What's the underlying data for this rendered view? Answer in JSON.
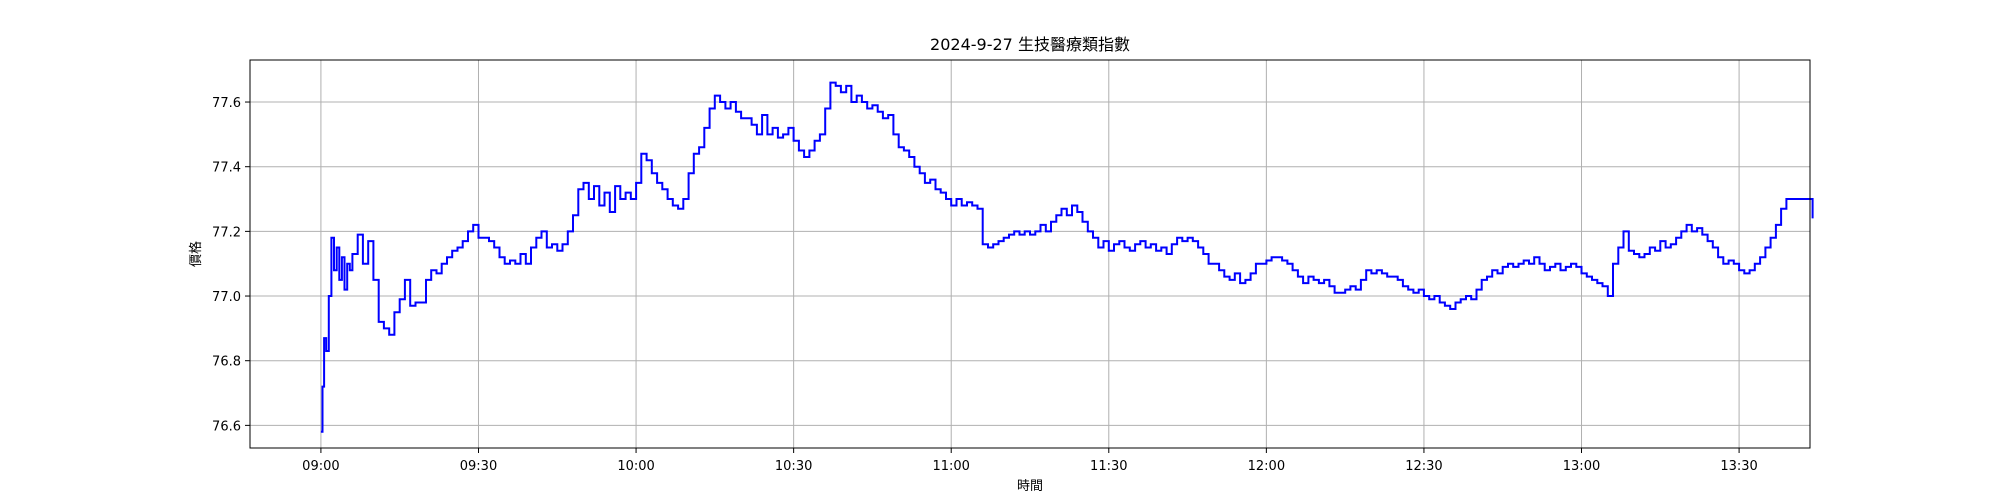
{
  "chart_data": {
    "type": "line",
    "title": "2024-9-27 生技醫療類指數",
    "xlabel": "時間",
    "ylabel": "價格",
    "x_ticks": [
      "09:00",
      "09:30",
      "10:00",
      "10:30",
      "11:00",
      "11:30",
      "12:00",
      "12:30",
      "13:00",
      "13:30"
    ],
    "y_ticks": [
      "76.6",
      "76.8",
      "77.0",
      "77.2",
      "77.4",
      "77.6"
    ],
    "xlim_minutes": [
      -13.5,
      283.5
    ],
    "ylim": [
      76.53,
      77.73
    ],
    "grid": true,
    "series": [
      {
        "color": "#0000ff",
        "points": [
          [
            0,
            76.58
          ],
          [
            0.3,
            76.72
          ],
          [
            0.6,
            76.87
          ],
          [
            1,
            76.83
          ],
          [
            1.5,
            77.0
          ],
          [
            2,
            77.18
          ],
          [
            2.5,
            77.08
          ],
          [
            3,
            77.15
          ],
          [
            3.5,
            77.05
          ],
          [
            4,
            77.12
          ],
          [
            4.5,
            77.02
          ],
          [
            5,
            77.1
          ],
          [
            5.5,
            77.08
          ],
          [
            6,
            77.13
          ],
          [
            7,
            77.19
          ],
          [
            8,
            77.1
          ],
          [
            9,
            77.17
          ],
          [
            10,
            77.05
          ],
          [
            11,
            76.92
          ],
          [
            12,
            76.9
          ],
          [
            13,
            76.88
          ],
          [
            14,
            76.95
          ],
          [
            15,
            76.99
          ],
          [
            16,
            77.05
          ],
          [
            17,
            76.97
          ],
          [
            18,
            76.98
          ],
          [
            19,
            76.98
          ],
          [
            20,
            77.05
          ],
          [
            21,
            77.08
          ],
          [
            22,
            77.07
          ],
          [
            23,
            77.1
          ],
          [
            24,
            77.12
          ],
          [
            25,
            77.14
          ],
          [
            26,
            77.15
          ],
          [
            27,
            77.17
          ],
          [
            28,
            77.2
          ],
          [
            29,
            77.22
          ],
          [
            30,
            77.18
          ],
          [
            31,
            77.18
          ],
          [
            32,
            77.17
          ],
          [
            33,
            77.15
          ],
          [
            34,
            77.12
          ],
          [
            35,
            77.1
          ],
          [
            36,
            77.11
          ],
          [
            37,
            77.1
          ],
          [
            38,
            77.13
          ],
          [
            39,
            77.1
          ],
          [
            40,
            77.15
          ],
          [
            41,
            77.18
          ],
          [
            42,
            77.2
          ],
          [
            43,
            77.15
          ],
          [
            44,
            77.16
          ],
          [
            45,
            77.14
          ],
          [
            46,
            77.16
          ],
          [
            47,
            77.2
          ],
          [
            48,
            77.25
          ],
          [
            49,
            77.33
          ],
          [
            50,
            77.35
          ],
          [
            51,
            77.3
          ],
          [
            52,
            77.34
          ],
          [
            53,
            77.28
          ],
          [
            54,
            77.32
          ],
          [
            55,
            77.26
          ],
          [
            56,
            77.34
          ],
          [
            57,
            77.3
          ],
          [
            58,
            77.32
          ],
          [
            59,
            77.3
          ],
          [
            60,
            77.35
          ],
          [
            61,
            77.44
          ],
          [
            62,
            77.42
          ],
          [
            63,
            77.38
          ],
          [
            64,
            77.35
          ],
          [
            65,
            77.33
          ],
          [
            66,
            77.3
          ],
          [
            67,
            77.28
          ],
          [
            68,
            77.27
          ],
          [
            69,
            77.3
          ],
          [
            70,
            77.38
          ],
          [
            71,
            77.44
          ],
          [
            72,
            77.46
          ],
          [
            73,
            77.52
          ],
          [
            74,
            77.58
          ],
          [
            75,
            77.62
          ],
          [
            76,
            77.6
          ],
          [
            77,
            77.58
          ],
          [
            78,
            77.6
          ],
          [
            79,
            77.57
          ],
          [
            80,
            77.55
          ],
          [
            81,
            77.55
          ],
          [
            82,
            77.53
          ],
          [
            83,
            77.5
          ],
          [
            84,
            77.56
          ],
          [
            85,
            77.5
          ],
          [
            86,
            77.52
          ],
          [
            87,
            77.49
          ],
          [
            88,
            77.5
          ],
          [
            89,
            77.52
          ],
          [
            90,
            77.48
          ],
          [
            91,
            77.45
          ],
          [
            92,
            77.43
          ],
          [
            93,
            77.45
          ],
          [
            94,
            77.48
          ],
          [
            95,
            77.5
          ],
          [
            96,
            77.58
          ],
          [
            97,
            77.66
          ],
          [
            98,
            77.65
          ],
          [
            99,
            77.63
          ],
          [
            100,
            77.65
          ],
          [
            101,
            77.6
          ],
          [
            102,
            77.62
          ],
          [
            103,
            77.6
          ],
          [
            104,
            77.58
          ],
          [
            105,
            77.59
          ],
          [
            106,
            77.57
          ],
          [
            107,
            77.55
          ],
          [
            108,
            77.56
          ],
          [
            109,
            77.5
          ],
          [
            110,
            77.46
          ],
          [
            111,
            77.45
          ],
          [
            112,
            77.43
          ],
          [
            113,
            77.4
          ],
          [
            114,
            77.38
          ],
          [
            115,
            77.35
          ],
          [
            116,
            77.36
          ],
          [
            117,
            77.33
          ],
          [
            118,
            77.32
          ],
          [
            119,
            77.3
          ],
          [
            120,
            77.28
          ],
          [
            121,
            77.3
          ],
          [
            122,
            77.28
          ],
          [
            123,
            77.29
          ],
          [
            124,
            77.28
          ],
          [
            125,
            77.27
          ],
          [
            126,
            77.16
          ],
          [
            127,
            77.15
          ],
          [
            128,
            77.16
          ],
          [
            129,
            77.17
          ],
          [
            130,
            77.18
          ],
          [
            131,
            77.19
          ],
          [
            132,
            77.2
          ],
          [
            133,
            77.19
          ],
          [
            134,
            77.2
          ],
          [
            135,
            77.19
          ],
          [
            136,
            77.2
          ],
          [
            137,
            77.22
          ],
          [
            138,
            77.2
          ],
          [
            139,
            77.23
          ],
          [
            140,
            77.25
          ],
          [
            141,
            77.27
          ],
          [
            142,
            77.25
          ],
          [
            143,
            77.28
          ],
          [
            144,
            77.26
          ],
          [
            145,
            77.23
          ],
          [
            146,
            77.2
          ],
          [
            147,
            77.18
          ],
          [
            148,
            77.15
          ],
          [
            149,
            77.17
          ],
          [
            150,
            77.14
          ],
          [
            151,
            77.16
          ],
          [
            152,
            77.17
          ],
          [
            153,
            77.15
          ],
          [
            154,
            77.14
          ],
          [
            155,
            77.16
          ],
          [
            156,
            77.17
          ],
          [
            157,
            77.15
          ],
          [
            158,
            77.16
          ],
          [
            159,
            77.14
          ],
          [
            160,
            77.15
          ],
          [
            161,
            77.13
          ],
          [
            162,
            77.16
          ],
          [
            163,
            77.18
          ],
          [
            164,
            77.17
          ],
          [
            165,
            77.18
          ],
          [
            166,
            77.17
          ],
          [
            167,
            77.15
          ],
          [
            168,
            77.13
          ],
          [
            169,
            77.1
          ],
          [
            170,
            77.1
          ],
          [
            171,
            77.08
          ],
          [
            172,
            77.06
          ],
          [
            173,
            77.05
          ],
          [
            174,
            77.07
          ],
          [
            175,
            77.04
          ],
          [
            176,
            77.05
          ],
          [
            177,
            77.07
          ],
          [
            178,
            77.1
          ],
          [
            179,
            77.1
          ],
          [
            180,
            77.11
          ],
          [
            181,
            77.12
          ],
          [
            182,
            77.12
          ],
          [
            183,
            77.11
          ],
          [
            184,
            77.1
          ],
          [
            185,
            77.08
          ],
          [
            186,
            77.06
          ],
          [
            187,
            77.04
          ],
          [
            188,
            77.06
          ],
          [
            189,
            77.05
          ],
          [
            190,
            77.04
          ],
          [
            191,
            77.05
          ],
          [
            192,
            77.03
          ],
          [
            193,
            77.01
          ],
          [
            194,
            77.01
          ],
          [
            195,
            77.02
          ],
          [
            196,
            77.03
          ],
          [
            197,
            77.02
          ],
          [
            198,
            77.05
          ],
          [
            199,
            77.08
          ],
          [
            200,
            77.07
          ],
          [
            201,
            77.08
          ],
          [
            202,
            77.07
          ],
          [
            203,
            77.06
          ],
          [
            204,
            77.06
          ],
          [
            205,
            77.05
          ],
          [
            206,
            77.03
          ],
          [
            207,
            77.02
          ],
          [
            208,
            77.01
          ],
          [
            209,
            77.02
          ],
          [
            210,
            77.0
          ],
          [
            211,
            76.99
          ],
          [
            212,
            77.0
          ],
          [
            213,
            76.98
          ],
          [
            214,
            76.97
          ],
          [
            215,
            76.96
          ],
          [
            216,
            76.98
          ],
          [
            217,
            76.99
          ],
          [
            218,
            77.0
          ],
          [
            219,
            76.99
          ],
          [
            220,
            77.02
          ],
          [
            221,
            77.05
          ],
          [
            222,
            77.06
          ],
          [
            223,
            77.08
          ],
          [
            224,
            77.07
          ],
          [
            225,
            77.09
          ],
          [
            226,
            77.1
          ],
          [
            227,
            77.09
          ],
          [
            228,
            77.1
          ],
          [
            229,
            77.11
          ],
          [
            230,
            77.1
          ],
          [
            231,
            77.12
          ],
          [
            232,
            77.1
          ],
          [
            233,
            77.08
          ],
          [
            234,
            77.09
          ],
          [
            235,
            77.1
          ],
          [
            236,
            77.08
          ],
          [
            237,
            77.09
          ],
          [
            238,
            77.1
          ],
          [
            239,
            77.09
          ],
          [
            240,
            77.07
          ],
          [
            241,
            77.06
          ],
          [
            242,
            77.05
          ],
          [
            243,
            77.04
          ],
          [
            244,
            77.03
          ],
          [
            245,
            77.0
          ],
          [
            246,
            77.1
          ],
          [
            247,
            77.15
          ],
          [
            248,
            77.2
          ],
          [
            249,
            77.14
          ],
          [
            250,
            77.13
          ],
          [
            251,
            77.12
          ],
          [
            252,
            77.13
          ],
          [
            253,
            77.15
          ],
          [
            254,
            77.14
          ],
          [
            255,
            77.17
          ],
          [
            256,
            77.15
          ],
          [
            257,
            77.16
          ],
          [
            258,
            77.18
          ],
          [
            259,
            77.2
          ],
          [
            260,
            77.22
          ],
          [
            261,
            77.2
          ],
          [
            262,
            77.21
          ],
          [
            263,
            77.19
          ],
          [
            264,
            77.17
          ],
          [
            265,
            77.15
          ],
          [
            266,
            77.12
          ],
          [
            267,
            77.1
          ],
          [
            268,
            77.11
          ],
          [
            269,
            77.1
          ],
          [
            270,
            77.08
          ],
          [
            271,
            77.07
          ],
          [
            272,
            77.08
          ],
          [
            273,
            77.1
          ],
          [
            274,
            77.12
          ],
          [
            275,
            77.15
          ],
          [
            276,
            77.18
          ],
          [
            277,
            77.22
          ],
          [
            278,
            77.27
          ],
          [
            279,
            77.3
          ],
          [
            280,
            77.3
          ],
          [
            281,
            77.3
          ],
          [
            282,
            77.3
          ],
          [
            283,
            77.3
          ],
          [
            284,
            77.24
          ]
        ]
      }
    ]
  }
}
